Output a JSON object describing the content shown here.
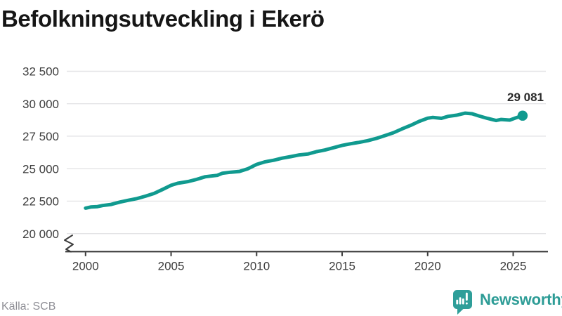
{
  "title": "Befolkningsutveckling i Ekerö",
  "source": "Källa: SCB",
  "branding": {
    "name": "Newsworthy",
    "logo_icon": "newsworthy-speech-bubble-bar-chart-icon"
  },
  "colors": {
    "line": "#109a8f",
    "dot": "#109a8f",
    "grid": "#e4e4e6",
    "axis": "#3a3a3a",
    "tick_label": "#3d3d3d",
    "value_label": "#2b2b2b",
    "title": "#161616",
    "source": "#8e8e95",
    "brand": "#2d9c96",
    "background": "#ffffff"
  },
  "chart_data": {
    "type": "line",
    "title": "Befolkningsutveckling i Ekerö",
    "xlabel": "",
    "ylabel": "",
    "legend": "none",
    "grid": "horizontal",
    "axis_break": true,
    "xlim": [
      1998.9,
      2026.95
    ],
    "ylim": [
      20000,
      33500
    ],
    "x_ticks": [
      {
        "value": 2000,
        "label": "2000"
      },
      {
        "value": 2005,
        "label": "2005"
      },
      {
        "value": 2010,
        "label": "2010"
      },
      {
        "value": 2015,
        "label": "2015"
      },
      {
        "value": 2020,
        "label": "2020"
      },
      {
        "value": 2025,
        "label": "2025"
      }
    ],
    "y_ticks": [
      {
        "value": 20000,
        "label": "20 000"
      },
      {
        "value": 22500,
        "label": "22 500"
      },
      {
        "value": 25000,
        "label": "25 000"
      },
      {
        "value": 27500,
        "label": "27 500"
      },
      {
        "value": 30000,
        "label": "30 000"
      },
      {
        "value": 32500,
        "label": "32 500"
      }
    ],
    "end_label": "29 081",
    "end_value": 29081,
    "series": [
      {
        "name": "Ekerö",
        "points": [
          [
            2000.0,
            21960
          ],
          [
            2000.3,
            22050
          ],
          [
            2000.7,
            22080
          ],
          [
            2001.0,
            22160
          ],
          [
            2001.5,
            22250
          ],
          [
            2002.0,
            22430
          ],
          [
            2002.5,
            22570
          ],
          [
            2003.0,
            22700
          ],
          [
            2003.5,
            22880
          ],
          [
            2004.0,
            23090
          ],
          [
            2004.5,
            23400
          ],
          [
            2005.0,
            23720
          ],
          [
            2005.4,
            23880
          ],
          [
            2006.0,
            24010
          ],
          [
            2006.5,
            24180
          ],
          [
            2007.0,
            24380
          ],
          [
            2007.3,
            24430
          ],
          [
            2007.7,
            24490
          ],
          [
            2008.0,
            24650
          ],
          [
            2008.5,
            24730
          ],
          [
            2009.0,
            24790
          ],
          [
            2009.5,
            25000
          ],
          [
            2010.0,
            25330
          ],
          [
            2010.5,
            25530
          ],
          [
            2011.0,
            25650
          ],
          [
            2011.5,
            25810
          ],
          [
            2012.0,
            25930
          ],
          [
            2012.5,
            26060
          ],
          [
            2013.0,
            26130
          ],
          [
            2013.5,
            26310
          ],
          [
            2014.0,
            26440
          ],
          [
            2014.5,
            26620
          ],
          [
            2015.0,
            26790
          ],
          [
            2015.5,
            26920
          ],
          [
            2016.0,
            27030
          ],
          [
            2016.5,
            27160
          ],
          [
            2017.0,
            27330
          ],
          [
            2017.5,
            27550
          ],
          [
            2018.0,
            27770
          ],
          [
            2018.5,
            28060
          ],
          [
            2019.0,
            28330
          ],
          [
            2019.5,
            28640
          ],
          [
            2020.0,
            28890
          ],
          [
            2020.3,
            28950
          ],
          [
            2020.8,
            28880
          ],
          [
            2021.2,
            29030
          ],
          [
            2021.7,
            29120
          ],
          [
            2022.2,
            29280
          ],
          [
            2022.6,
            29230
          ],
          [
            2023.0,
            29060
          ],
          [
            2023.5,
            28870
          ],
          [
            2024.0,
            28710
          ],
          [
            2024.3,
            28790
          ],
          [
            2024.8,
            28740
          ],
          [
            2025.1,
            28890
          ],
          [
            2025.55,
            29081
          ]
        ]
      }
    ]
  }
}
